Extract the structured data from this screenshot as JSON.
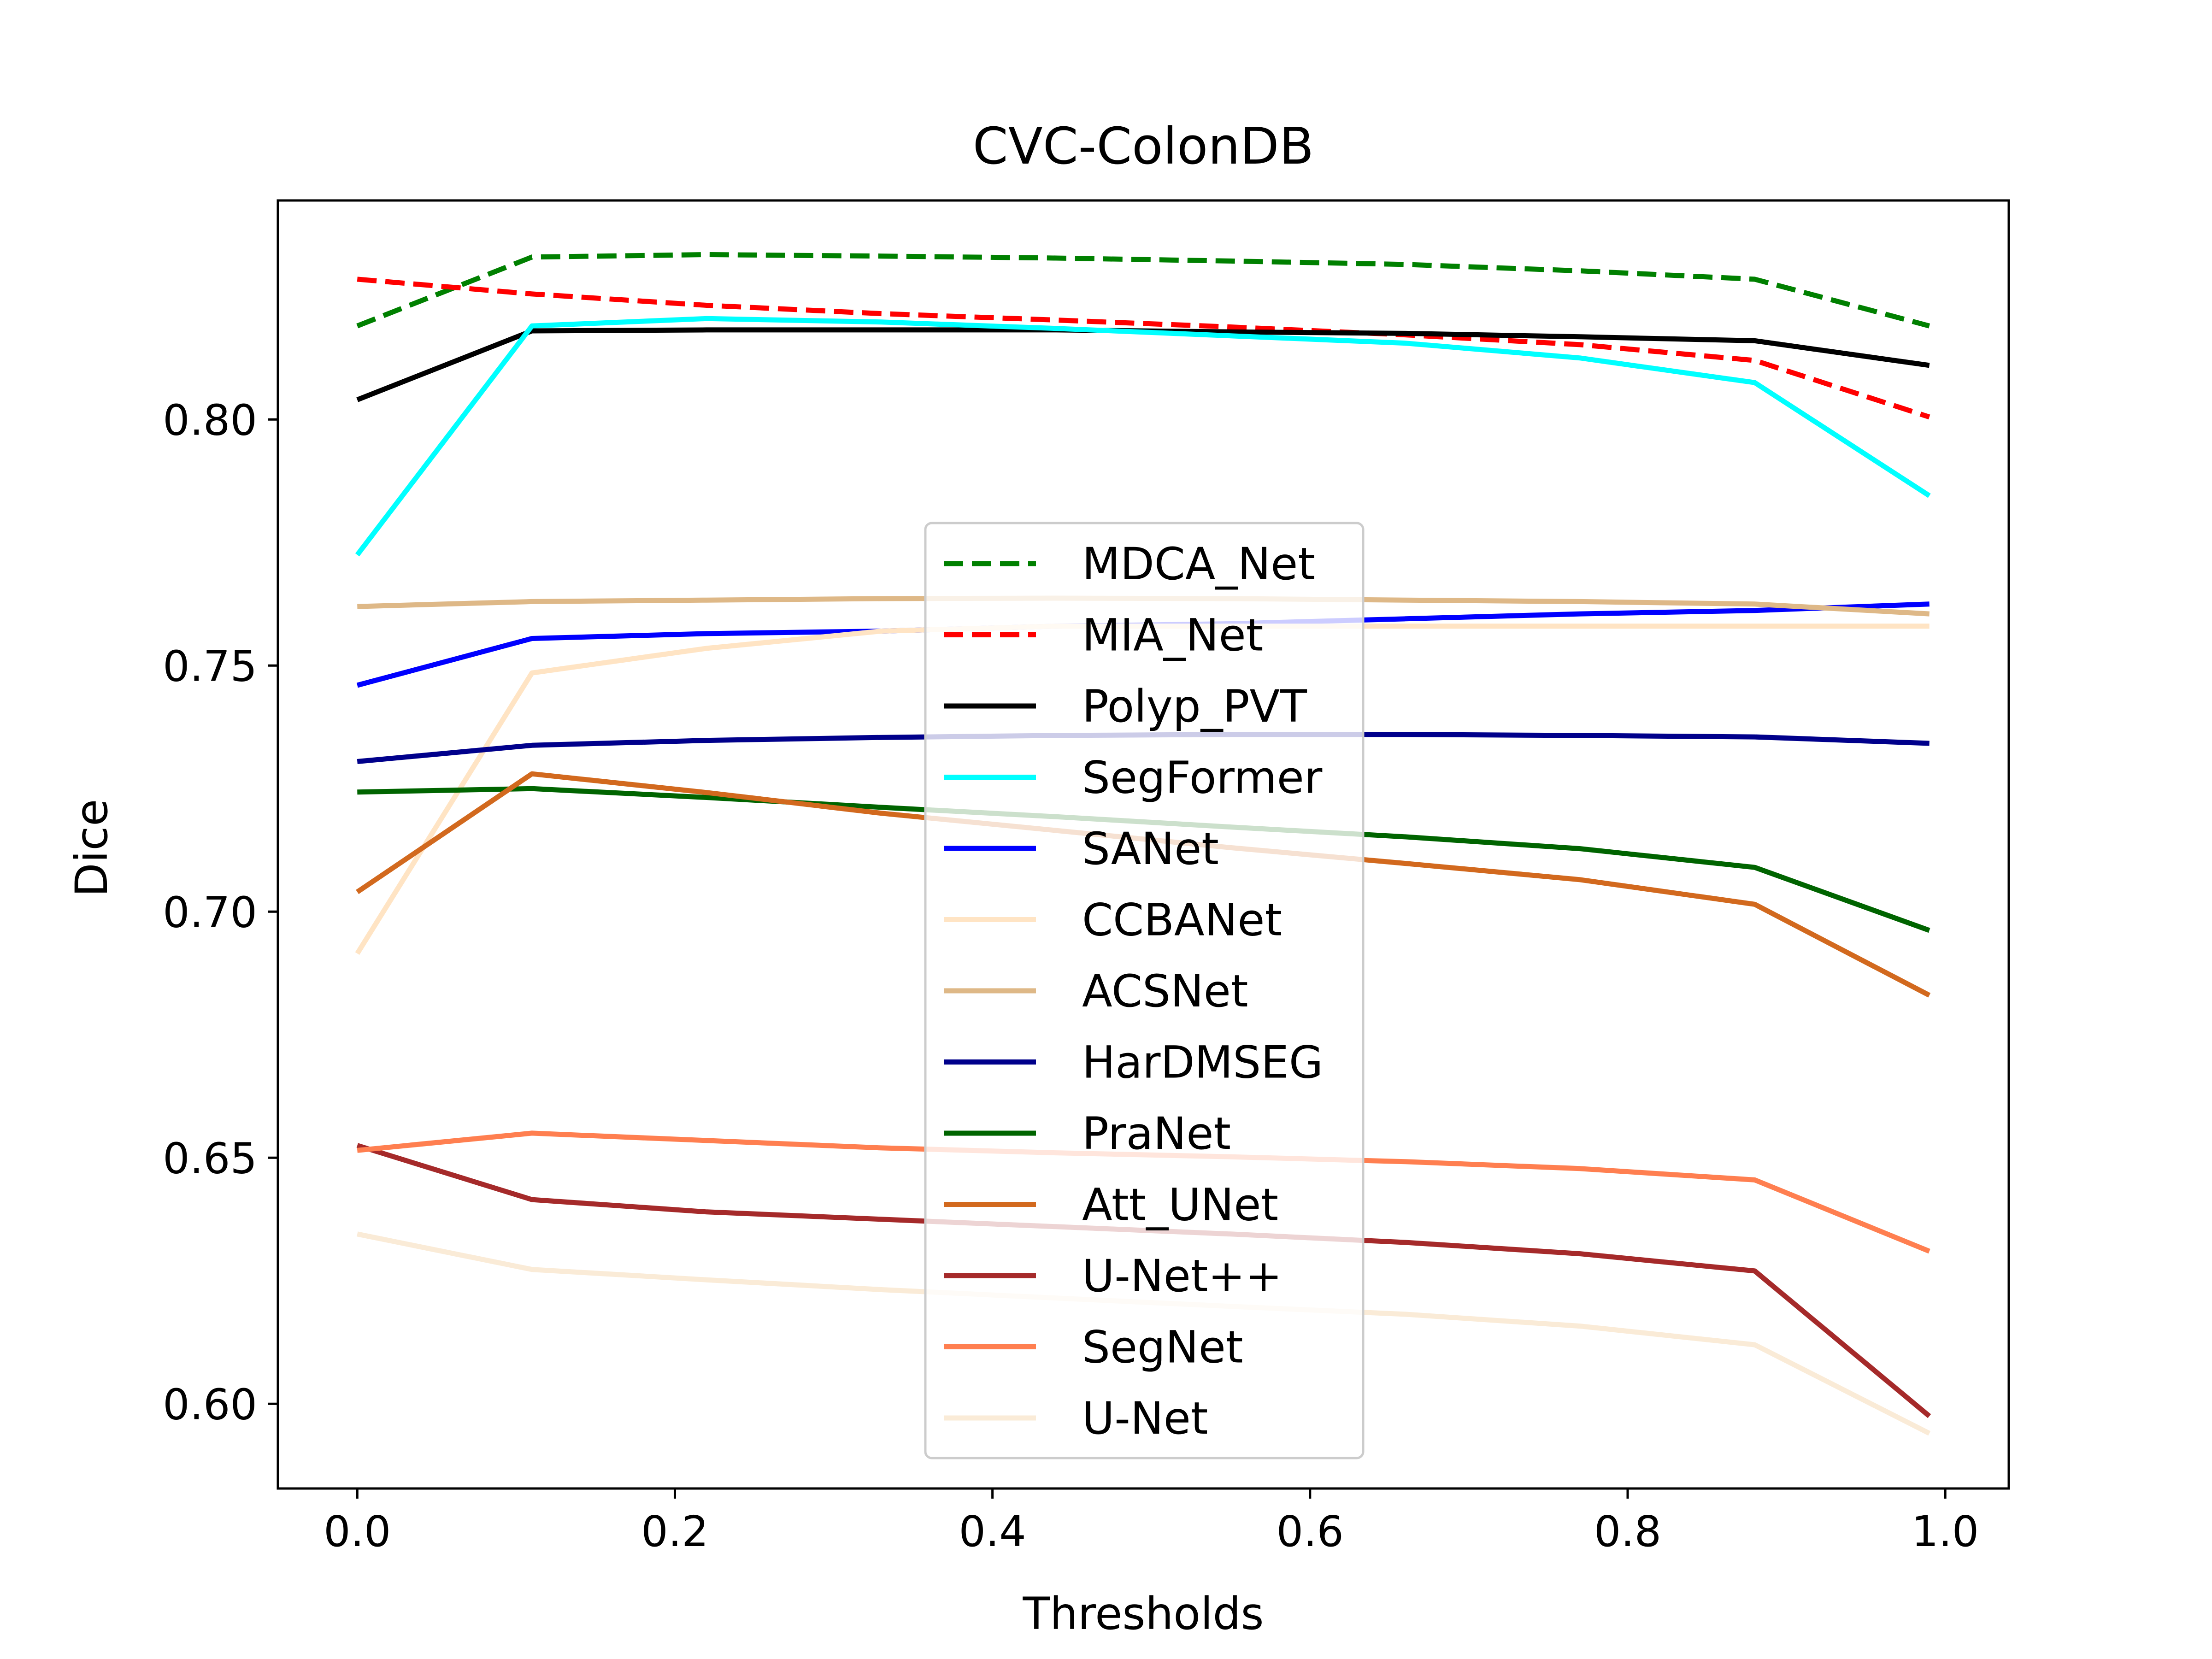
{
  "chart_data": {
    "type": "line",
    "title": "CVC-ColonDB",
    "xlabel": "Thresholds",
    "ylabel": "Dice",
    "xlim": [
      -0.05,
      1.04
    ],
    "ylim": [
      0.5828,
      0.8445
    ],
    "xticks": [
      0.0,
      0.2,
      0.4,
      0.6,
      0.8,
      1.0
    ],
    "xtick_labels": [
      "0.0",
      "0.2",
      "0.4",
      "0.6",
      "0.8",
      "1.0"
    ],
    "yticks": [
      0.6,
      0.65,
      0.7,
      0.75,
      0.8
    ],
    "ytick_labels": [
      "0.60",
      "0.65",
      "0.70",
      "0.75",
      "0.80"
    ],
    "grid": false,
    "legend_position": "center",
    "x": [
      0.0,
      0.11,
      0.22,
      0.33,
      0.44,
      0.55,
      0.66,
      0.77,
      0.88,
      0.99
    ],
    "series": [
      {
        "name": "MDCA_Net",
        "color": "#008000",
        "dash": "dashed",
        "values": [
          0.819,
          0.833,
          0.8335,
          0.8332,
          0.8328,
          0.8322,
          0.8315,
          0.8302,
          0.8285,
          0.819
        ]
      },
      {
        "name": "MIA_Net",
        "color": "#ff0000",
        "dash": "dashed",
        "values": [
          0.8285,
          0.8255,
          0.8232,
          0.8215,
          0.8202,
          0.8188,
          0.8172,
          0.8152,
          0.812,
          0.8005
        ]
      },
      {
        "name": "Polyp_PVT",
        "color": "#000000",
        "dash": "solid",
        "values": [
          0.804,
          0.818,
          0.8182,
          0.8182,
          0.8182,
          0.8178,
          0.8175,
          0.8168,
          0.816,
          0.811
        ]
      },
      {
        "name": "SegFormer",
        "color": "#00ffff",
        "dash": "solid",
        "values": [
          0.7725,
          0.819,
          0.8205,
          0.8198,
          0.8185,
          0.817,
          0.8155,
          0.8125,
          0.8075,
          0.7845
        ]
      },
      {
        "name": "SANet",
        "color": "#0000ff",
        "dash": "solid",
        "values": [
          0.746,
          0.7555,
          0.7565,
          0.757,
          0.758,
          0.7585,
          0.7595,
          0.7605,
          0.7612,
          0.7625
        ]
      },
      {
        "name": "CCBANet",
        "color": "#ffe4c4",
        "dash": "solid",
        "values": [
          0.6915,
          0.7485,
          0.7535,
          0.757,
          0.758,
          0.758,
          0.758,
          0.758,
          0.758,
          0.758
        ]
      },
      {
        "name": "ACSNet",
        "color": "#deb887",
        "dash": "solid",
        "values": [
          0.762,
          0.763,
          0.7633,
          0.7636,
          0.7637,
          0.7636,
          0.7633,
          0.763,
          0.7625,
          0.7605
        ]
      },
      {
        "name": "HarDMSEG",
        "color": "#00008b",
        "dash": "solid",
        "values": [
          0.7305,
          0.7338,
          0.7348,
          0.7354,
          0.7358,
          0.736,
          0.736,
          0.7358,
          0.7355,
          0.7342
        ]
      },
      {
        "name": "PraNet",
        "color": "#006400",
        "dash": "solid",
        "values": [
          0.7243,
          0.725,
          0.7232,
          0.7212,
          0.7193,
          0.7172,
          0.7152,
          0.7128,
          0.709,
          0.6962
        ]
      },
      {
        "name": "Att_UNet",
        "color": "#d2691e",
        "dash": "solid",
        "values": [
          0.704,
          0.728,
          0.7242,
          0.72,
          0.7165,
          0.713,
          0.7098,
          0.7065,
          0.7015,
          0.683
        ]
      },
      {
        "name": "U-Net++",
        "color": "#a52a2a",
        "dash": "solid",
        "values": [
          0.6525,
          0.6415,
          0.639,
          0.6375,
          0.636,
          0.6345,
          0.6328,
          0.6305,
          0.627,
          0.5975
        ]
      },
      {
        "name": "SegNet",
        "color": "#ff7f50",
        "dash": "solid",
        "values": [
          0.6515,
          0.655,
          0.6535,
          0.652,
          0.651,
          0.6502,
          0.6492,
          0.6478,
          0.6455,
          0.631
        ]
      },
      {
        "name": "U-Net",
        "color": "#faebd7",
        "dash": "solid",
        "values": [
          0.6345,
          0.6273,
          0.6252,
          0.6232,
          0.6215,
          0.6198,
          0.6182,
          0.6158,
          0.612,
          0.594
        ]
      }
    ]
  }
}
